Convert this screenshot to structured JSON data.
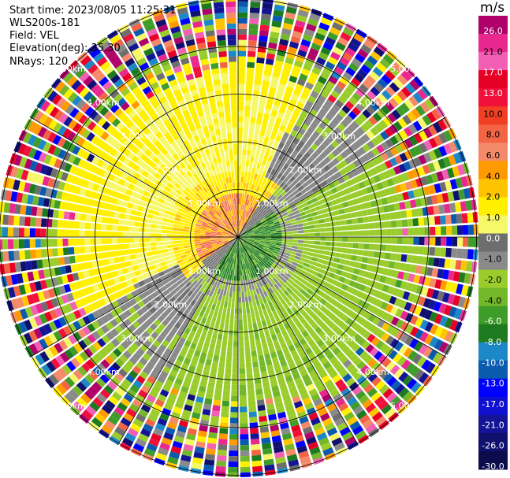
{
  "header": {
    "start_time": "Start time: 2023/08/05 11:25:31",
    "instrument": "WLS200s-181",
    "field": "Field: VEL",
    "elevation": "Elevation(deg): 35.30",
    "nrays": "NRays: 120"
  },
  "colorbar": {
    "unit": "m/s",
    "ticks": [
      "26.0",
      "21.0",
      "17.0",
      "13.0",
      "10.0",
      "8.0",
      "6.0",
      "4.0",
      "2.0",
      "1.0",
      "0.0",
      "-1.0",
      "-2.0",
      "-4.0",
      "-6.0",
      "-8.0",
      "-10.0",
      "-13.0",
      "-17.0",
      "-21.0",
      "-26.0",
      "-30.0"
    ],
    "colors": [
      "#b0006a",
      "#e8288f",
      "#f25fb4",
      "#e60026",
      "#f0103a",
      "#f23f23",
      "#f26444",
      "#f58a6a",
      "#ff9a00",
      "#ffc400",
      "#ffef00",
      "#f7f76a",
      "#6e6e6e",
      "#8a8a8a",
      "#9acc2c",
      "#74b82a",
      "#3e9c28",
      "#1e7a1e",
      "#1c88c8",
      "#0a5ab0",
      "#0000ff",
      "#1010d0",
      "#141496",
      "#10106e",
      "#0c0c4c"
    ]
  },
  "chart_data": {
    "type": "ppi",
    "field": "VEL",
    "nrays": 120,
    "range_rings_km": [
      "1.00km",
      "2.00km",
      "3.00km",
      "4.00km",
      "5.00km"
    ],
    "ring_values_km": [
      1,
      2,
      3,
      4,
      5
    ]
  }
}
